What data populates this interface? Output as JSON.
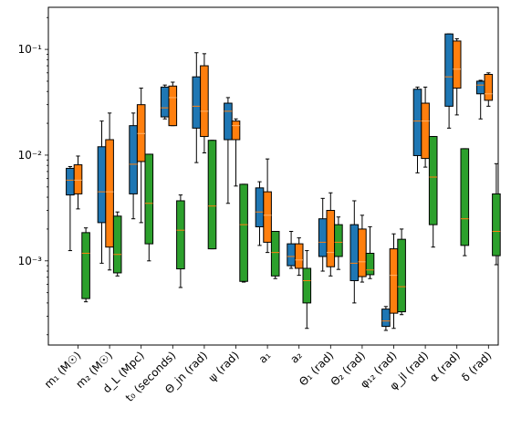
{
  "chart_data": {
    "type": "boxplot",
    "yscale": "log",
    "ylim": [
      0.00016,
      0.25
    ],
    "yticks": [
      {
        "value": 0.001,
        "label": "10⁻³"
      },
      {
        "value": 0.01,
        "label": "10⁻²"
      },
      {
        "value": 0.1,
        "label": "10⁻¹"
      }
    ],
    "categories": [
      "m₁ (M☉)",
      "m₂ (M☉)",
      "d_L (Mpc)",
      "t₀ (seconds)",
      "Θ_jn (rad)",
      "ψ (rad)",
      "a₁",
      "a₂",
      "Θ₁ (rad)",
      "Θ₂ (rad)",
      "φ₁₂ (rad)",
      "φ_jl (rad)",
      "α (rad)",
      "δ (rad)"
    ],
    "colors": {
      "series1": "#1f77b4",
      "series2": "#ff7f0e",
      "series3": "#2ca02c",
      "median_blue": "#ff7f0e",
      "median_orange": "#ff7f0e",
      "median_green": "#ff7f0e"
    },
    "series": [
      {
        "boxes": [
          {
            "wlo": 0.00125,
            "q1": 0.0042,
            "med": 0.0058,
            "q3": 0.0075,
            "whi": 0.0078
          },
          {
            "wlo": 0.00095,
            "q1": 0.0023,
            "med": 0.0045,
            "q3": 0.012,
            "whi": 0.021
          },
          {
            "wlo": 0.0025,
            "q1": 0.0043,
            "med": 0.0082,
            "q3": 0.019,
            "whi": 0.025
          },
          {
            "wlo": 0.022,
            "q1": 0.023,
            "med": 0.028,
            "q3": 0.044,
            "whi": 0.046
          },
          {
            "wlo": 0.0085,
            "q1": 0.018,
            "med": 0.029,
            "q3": 0.055,
            "whi": 0.093
          },
          {
            "wlo": 0.0035,
            "q1": 0.014,
            "med": 0.026,
            "q3": 0.031,
            "whi": 0.035
          },
          {
            "wlo": 0.0014,
            "q1": 0.0021,
            "med": 0.0029,
            "q3": 0.0049,
            "whi": 0.0056
          },
          {
            "wlo": 0.00085,
            "q1": 0.0009,
            "med": 0.0011,
            "q3": 0.00145,
            "whi": 0.0019
          },
          {
            "wlo": 0.0008,
            "q1": 0.0011,
            "med": 0.0015,
            "q3": 0.0025,
            "whi": 0.0039
          },
          {
            "wlo": 0.0004,
            "q1": 0.00065,
            "med": 0.00095,
            "q3": 0.0022,
            "whi": 0.0037
          },
          {
            "wlo": 0.00022,
            "q1": 0.00024,
            "med": 0.00027,
            "q3": 0.00035,
            "whi": 0.00037
          },
          {
            "wlo": 0.0068,
            "q1": 0.0099,
            "med": 0.021,
            "q3": 0.042,
            "whi": 0.044
          },
          {
            "wlo": 0.018,
            "q1": 0.029,
            "med": 0.055,
            "q3": 0.14,
            "whi": 0.14
          },
          {
            "wlo": 0.022,
            "q1": 0.038,
            "med": 0.046,
            "q3": 0.05,
            "whi": 0.051
          }
        ]
      },
      {
        "boxes": [
          {
            "wlo": 0.0031,
            "q1": 0.0043,
            "med": 0.0058,
            "q3": 0.0081,
            "whi": 0.0098
          },
          {
            "wlo": 0.00082,
            "q1": 0.00135,
            "med": 0.0045,
            "q3": 0.014,
            "whi": 0.025
          },
          {
            "wlo": 0.0023,
            "q1": 0.0087,
            "med": 0.016,
            "q3": 0.03,
            "whi": 0.043
          },
          {
            "wlo": 0.019,
            "q1": 0.019,
            "med": 0.035,
            "q3": 0.045,
            "whi": 0.049
          },
          {
            "wlo": 0.0105,
            "q1": 0.015,
            "med": 0.026,
            "q3": 0.07,
            "whi": 0.091
          },
          {
            "wlo": 0.0051,
            "q1": 0.014,
            "med": 0.019,
            "q3": 0.021,
            "whi": 0.022
          },
          {
            "wlo": 0.0012,
            "q1": 0.0015,
            "med": 0.0027,
            "q3": 0.0045,
            "whi": 0.0092
          },
          {
            "wlo": 0.00073,
            "q1": 0.00085,
            "med": 0.00102,
            "q3": 0.00145,
            "whi": 0.00165
          },
          {
            "wlo": 0.00072,
            "q1": 0.00088,
            "med": 0.0012,
            "q3": 0.003,
            "whi": 0.0044
          },
          {
            "wlo": 0.00063,
            "q1": 0.00071,
            "med": 0.00098,
            "q3": 0.002,
            "whi": 0.0027
          },
          {
            "wlo": 0.00023,
            "q1": 0.00032,
            "med": 0.00073,
            "q3": 0.0013,
            "whi": 0.0018
          },
          {
            "wlo": 0.0077,
            "q1": 0.0093,
            "med": 0.021,
            "q3": 0.031,
            "whi": 0.044
          },
          {
            "wlo": 0.024,
            "q1": 0.043,
            "med": 0.065,
            "q3": 0.12,
            "whi": 0.126
          },
          {
            "wlo": 0.029,
            "q1": 0.033,
            "med": 0.038,
            "q3": 0.058,
            "whi": 0.06
          }
        ]
      },
      {
        "boxes": [
          {
            "wlo": 0.00041,
            "q1": 0.00044,
            "med": 0.00118,
            "q3": 0.00185,
            "whi": 0.00205
          },
          {
            "wlo": 0.00072,
            "q1": 0.00077,
            "med": 0.00115,
            "q3": 0.00265,
            "whi": 0.0029
          },
          {
            "wlo": 0.001,
            "q1": 0.00145,
            "med": 0.0035,
            "q3": 0.0102,
            "whi": 0.0102
          },
          {
            "wlo": 0.00056,
            "q1": 0.00084,
            "med": 0.00195,
            "q3": 0.0037,
            "whi": 0.0042
          },
          {
            "wlo": 0.0013,
            "q1": 0.0013,
            "med": 0.0033,
            "q3": 0.0138,
            "whi": 0.0138
          },
          {
            "wlo": 0.00063,
            "q1": 0.00064,
            "med": 0.0022,
            "q3": 0.0053,
            "whi": 0.0053
          },
          {
            "wlo": 0.00068,
            "q1": 0.00072,
            "med": 0.0012,
            "q3": 0.0019,
            "whi": 0.0019
          },
          {
            "wlo": 0.00023,
            "q1": 0.0004,
            "med": 0.00065,
            "q3": 0.00085,
            "whi": 0.00125
          },
          {
            "wlo": 0.00083,
            "q1": 0.0011,
            "med": 0.0015,
            "q3": 0.0022,
            "whi": 0.0026
          },
          {
            "wlo": 0.00068,
            "q1": 0.00074,
            "med": 0.00082,
            "q3": 0.00118,
            "whi": 0.0021
          },
          {
            "wlo": 0.00031,
            "q1": 0.00033,
            "med": 0.00057,
            "q3": 0.0016,
            "whi": 0.002
          },
          {
            "wlo": 0.00135,
            "q1": 0.0022,
            "med": 0.0062,
            "q3": 0.015,
            "whi": 0.015
          },
          {
            "wlo": 0.00112,
            "q1": 0.0014,
            "med": 0.0025,
            "q3": 0.0115,
            "whi": 0.0115
          },
          {
            "wlo": 0.00092,
            "q1": 0.00112,
            "med": 0.0019,
            "q3": 0.0043,
            "whi": 0.0083
          }
        ]
      }
    ]
  }
}
